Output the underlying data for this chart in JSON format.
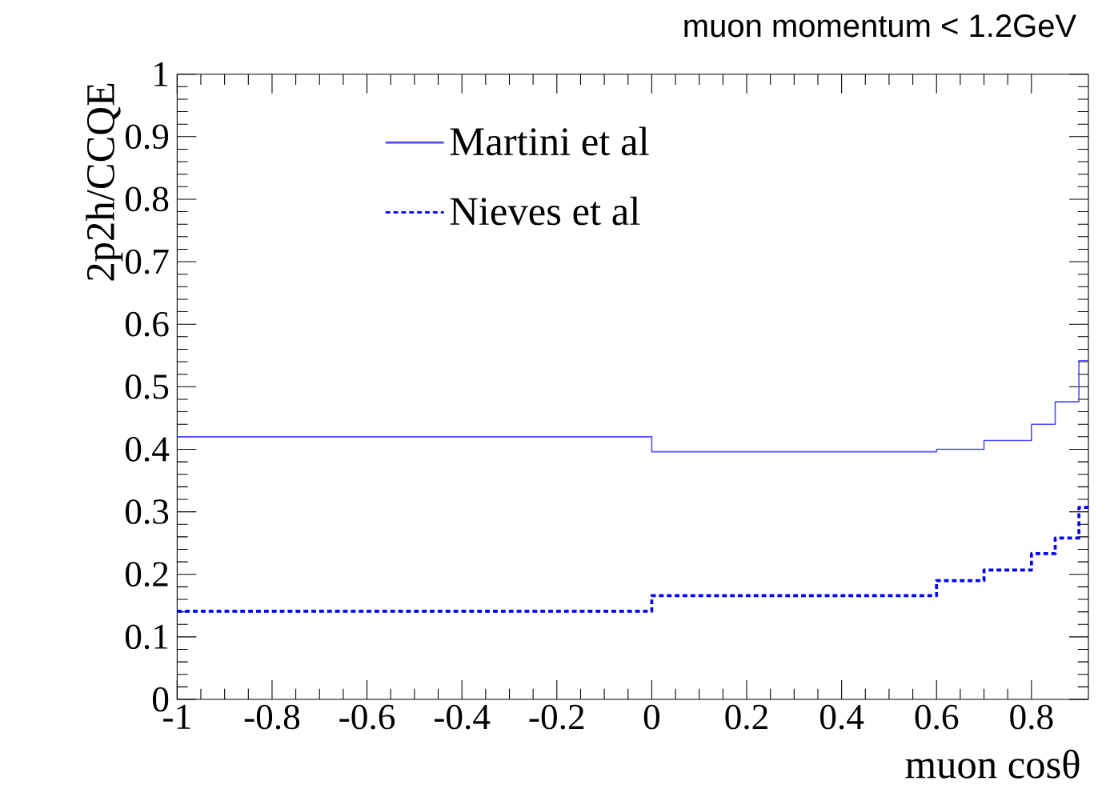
{
  "chart_data": {
    "type": "step",
    "title": "muon momentum < 1.2GeV",
    "xlabel": "muon cosθ",
    "ylabel": "2p2h/CCQE",
    "xlim": [
      -1,
      0.92
    ],
    "ylim": [
      0,
      1
    ],
    "xticks": [
      -1,
      -0.8,
      -0.6,
      -0.4,
      -0.2,
      0,
      0.2,
      0.4,
      0.6,
      0.8
    ],
    "yticks": [
      0,
      0.1,
      0.2,
      0.3,
      0.4,
      0.5,
      0.6,
      0.7,
      0.8,
      0.9,
      1
    ],
    "legend": "top",
    "grid": false,
    "series": [
      {
        "name": "Martini et al",
        "color": "#4d4dff",
        "line_style": "solid",
        "x": [
          -1,
          0,
          0.6,
          0.7,
          0.8,
          0.85,
          0.9,
          0.92
        ],
        "values": [
          0.42,
          0.396,
          0.4,
          0.414,
          0.44,
          0.476,
          0.542,
          0.542
        ]
      },
      {
        "name": "Nieves et al",
        "color": "#0000ff",
        "line_style": "dotted",
        "x": [
          -1,
          0,
          0.6,
          0.7,
          0.8,
          0.85,
          0.9,
          0.92
        ],
        "values": [
          0.141,
          0.166,
          0.19,
          0.207,
          0.233,
          0.258,
          0.307,
          0.307
        ]
      }
    ]
  }
}
